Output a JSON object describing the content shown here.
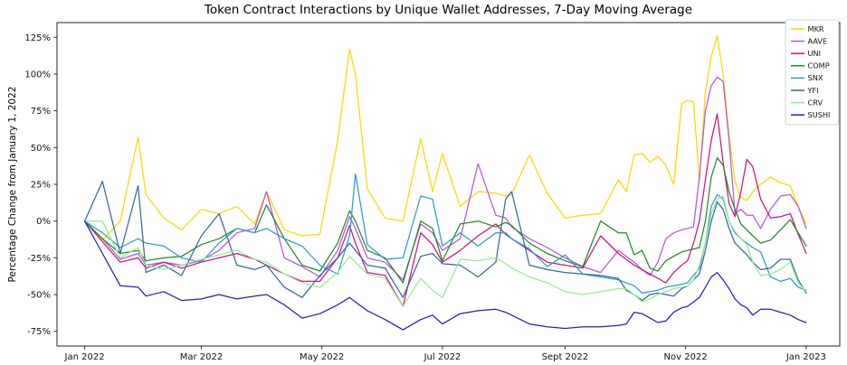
{
  "figure": {
    "title": "Token Contract Interactions by Unique Wallet Addresses, 7-Day Moving Average",
    "y_axis_label": "Percentage Change from January 1, 2022"
  },
  "chart_data": {
    "type": "line",
    "title": "Token Contract Interactions by Unique Wallet Addresses, 7-Day Moving Average",
    "xlabel": "",
    "ylabel": "Percentage Change from January 1, 2022",
    "x_unit": "days since 2022-01-01",
    "grid": false,
    "legend_position": "upper right",
    "legend_labels": [
      "MKR",
      "AAVE",
      "UNI",
      "COMP",
      "SNX",
      "YFI",
      "CRV",
      "SUSHI"
    ],
    "xlim_days": [
      -14,
      382
    ],
    "ylim": [
      -85,
      135
    ],
    "x_ticks": [
      {
        "label": "Jan 2022",
        "day": 0
      },
      {
        "label": "Mar 2022",
        "day": 59
      },
      {
        "label": "May 2022",
        "day": 120
      },
      {
        "label": "Jul 2022",
        "day": 181
      },
      {
        "label": "Sept 2022",
        "day": 243
      },
      {
        "label": "Nov 2022",
        "day": 304
      },
      {
        "label": "Jan 2023",
        "day": 365
      }
    ],
    "y_ticks": [
      {
        "label": "125%",
        "value": 125
      },
      {
        "label": "100%",
        "value": 100
      },
      {
        "label": "75%",
        "value": 75
      },
      {
        "label": "50%",
        "value": 50
      },
      {
        "label": "25%",
        "value": 25
      },
      {
        "label": "0%",
        "value": 0
      },
      {
        "label": "-25%",
        "value": -25
      },
      {
        "label": "-50%",
        "value": -50
      },
      {
        "label": "-75%",
        "value": -75
      }
    ],
    "x_days": [
      0,
      9,
      18,
      27,
      31,
      40,
      49,
      59,
      68,
      77,
      86,
      92,
      101,
      110,
      119,
      128,
      134,
      137,
      143,
      152,
      161,
      170,
      176,
      181,
      190,
      199,
      208,
      213,
      216,
      225,
      234,
      243,
      252,
      261,
      270,
      274,
      278,
      282,
      286,
      290,
      294,
      298,
      302,
      305,
      308,
      311,
      314,
      317,
      320,
      323,
      326,
      329,
      332,
      335,
      338,
      342,
      347,
      352,
      357,
      361,
      365
    ],
    "series": [
      {
        "name": "MKR",
        "color": "#ffd700",
        "values": [
          0,
          -13,
          0,
          57,
          18,
          2,
          -6,
          8,
          5,
          10,
          -2,
          20,
          -6,
          -10,
          -9,
          55,
          117,
          100,
          22,
          2,
          0,
          56,
          20,
          46,
          10,
          20,
          19,
          17,
          18,
          45,
          19,
          2,
          4,
          5,
          28,
          20,
          45,
          46,
          40,
          44,
          38,
          25,
          80,
          82,
          81,
          27,
          88,
          112,
          126,
          100,
          58,
          27,
          16,
          14,
          20,
          25,
          30,
          26,
          24,
          10,
          -2
        ]
      },
      {
        "name": "AAVE",
        "color": "#ba55d3",
        "values": [
          0,
          -12,
          -26,
          -22,
          -30,
          -28,
          -30,
          -27,
          -20,
          -8,
          -5,
          20,
          -25,
          -31,
          -38,
          -20,
          3,
          -5,
          -25,
          -28,
          -40,
          -2,
          -8,
          -20,
          -12,
          39,
          4,
          2,
          -4,
          -12,
          -18,
          -25,
          -31,
          -35,
          -20,
          -24,
          -28,
          -33,
          -37,
          -28,
          -12,
          -8,
          -6,
          -5,
          -4,
          30,
          75,
          92,
          98,
          95,
          55,
          5,
          8,
          4,
          4,
          -5,
          8,
          17,
          18,
          10,
          -5
        ]
      },
      {
        "name": "UNI",
        "color": "#c71585",
        "values": [
          0,
          -14,
          -28,
          -25,
          -32,
          -28,
          -32,
          -28,
          -25,
          -22,
          -26,
          -30,
          -36,
          -41,
          -41,
          -25,
          -3,
          -15,
          -35,
          -37,
          -58,
          -8,
          -16,
          -28,
          -20,
          -10,
          -2,
          -9,
          -12,
          -20,
          -28,
          -30,
          -32,
          -10,
          -22,
          -26,
          -30,
          -33,
          -36,
          -39,
          -42,
          -35,
          -30,
          -27,
          -15,
          0,
          28,
          55,
          73,
          40,
          12,
          3,
          20,
          42,
          37,
          15,
          2,
          3,
          5,
          -9,
          -22
        ]
      },
      {
        "name": "COMP",
        "color": "#228b22",
        "values": [
          0,
          -12,
          -22,
          -20,
          -27,
          -25,
          -24,
          -16,
          -12,
          -5,
          -8,
          11,
          -12,
          -30,
          -34,
          -15,
          7,
          0,
          -20,
          -25,
          -42,
          0,
          -5,
          -27,
          -2,
          0,
          -4,
          -1,
          -3,
          -15,
          -22,
          -27,
          -31,
          0,
          -8,
          -8,
          -23,
          -20,
          -32,
          -34,
          -27,
          -24,
          -21,
          -20,
          -19,
          -18,
          0,
          30,
          43,
          38,
          20,
          8,
          -2,
          -6,
          -10,
          -15,
          -13,
          -6,
          1,
          -8,
          -17
        ]
      },
      {
        "name": "SNX",
        "color": "#2f9bca",
        "values": [
          0,
          -8,
          -18,
          -12,
          -15,
          -17,
          -25,
          -28,
          -15,
          -5,
          -8,
          -5,
          -12,
          -17,
          -30,
          -36,
          -10,
          32,
          -16,
          -26,
          -25,
          17,
          15,
          -17,
          -8,
          -17,
          -8,
          -8,
          -12,
          -19,
          -31,
          -23,
          -36,
          -38,
          -40,
          -42,
          -44,
          -49,
          -48,
          -47,
          -45,
          -44,
          -43,
          -42,
          -37,
          -32,
          -15,
          10,
          18,
          15,
          0,
          -8,
          -12,
          -15,
          -18,
          -21,
          -38,
          -41,
          -39,
          -45,
          -47
        ]
      },
      {
        "name": "YFI",
        "color": "#34699a",
        "values": [
          0,
          27,
          -22,
          24,
          -35,
          -30,
          -37,
          -10,
          5,
          -30,
          -33,
          -30,
          -45,
          -52,
          -37,
          -25,
          -15,
          -20,
          -30,
          -32,
          -52,
          -24,
          -22,
          -29,
          -30,
          -38,
          -28,
          15,
          20,
          -30,
          -33,
          -35,
          -36,
          -37,
          -39,
          -47,
          -50,
          -54,
          -50,
          -49,
          -50,
          -51,
          -46,
          -44,
          -40,
          -36,
          -20,
          0,
          13,
          8,
          -5,
          -15,
          -19,
          -23,
          -28,
          -33,
          -32,
          -26,
          -26,
          -40,
          -49
        ]
      },
      {
        "name": "CRV",
        "color": "#90ee90",
        "values": [
          0,
          0,
          -25,
          -18,
          -30,
          -33,
          -30,
          -26,
          -23,
          -20,
          -26,
          -28,
          -36,
          -42,
          -45,
          -35,
          -24,
          -28,
          -36,
          -39,
          -58,
          -39,
          -47,
          -52,
          -26,
          -27,
          -25,
          -29,
          -32,
          -38,
          -42,
          -48,
          -50,
          -48,
          -46,
          -46,
          -50,
          -55,
          -53,
          -50,
          -48,
          -46,
          -45,
          -44,
          -40,
          -30,
          -15,
          5,
          15,
          17,
          0,
          -7,
          -12,
          -16,
          -28,
          -37,
          -36,
          -33,
          -28,
          -42,
          -48
        ]
      },
      {
        "name": "SUSHI",
        "color": "#2222b2",
        "values": [
          0,
          -22,
          -44,
          -45,
          -51,
          -48,
          -54,
          -53,
          -50,
          -53,
          -51,
          -50,
          -57,
          -66,
          -63,
          -57,
          -52,
          -55,
          -61,
          -67,
          -74,
          -67,
          -64,
          -70,
          -63,
          -61,
          -60,
          -62,
          -64,
          -70,
          -72,
          -73,
          -72,
          -72,
          -71,
          -70,
          -62,
          -63,
          -66,
          -69,
          -68,
          -62,
          -59,
          -58,
          -55,
          -52,
          -45,
          -38,
          -35,
          -40,
          -46,
          -53,
          -57,
          -59,
          -64,
          -60,
          -60,
          -62,
          -64,
          -67,
          -69
        ]
      }
    ]
  }
}
